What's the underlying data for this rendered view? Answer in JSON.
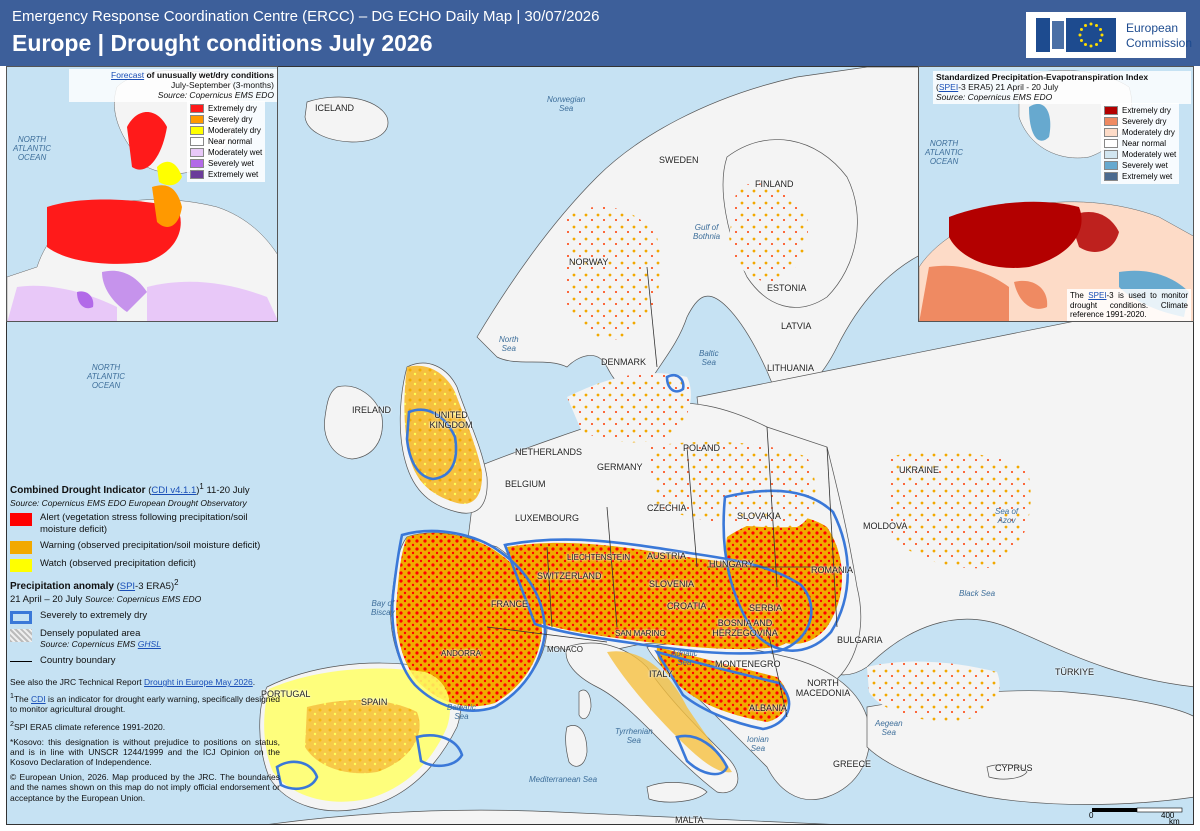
{
  "header": {
    "subtitle": "Emergency Response Coordination Centre (ERCC) – DG ECHO Daily Map | 30/07/2026",
    "title": "Europe | Drought conditions July 2026",
    "logo_line1": "European",
    "logo_line2": "Commission"
  },
  "left_inset": {
    "title_link": "Forecast",
    "title_rest": " of unusually wet/dry conditions",
    "period": "July-September (3-months)",
    "source": "Source: Copernicus EMS EDO",
    "ocean_label": "NORTH\nATLANTIC\nOCEAN",
    "legend": [
      {
        "label": "Extremely dry",
        "color": "#ff1a1a"
      },
      {
        "label": "Severely dry",
        "color": "#ff9900"
      },
      {
        "label": "Moderately dry",
        "color": "#ffff00"
      },
      {
        "label": "Near normal",
        "color": "#ffffff"
      },
      {
        "label": "Moderately wet",
        "color": "#e8c8f8"
      },
      {
        "label": "Severely wet",
        "color": "#b26ae8"
      },
      {
        "label": "Extremely wet",
        "color": "#6a3c9a"
      }
    ]
  },
  "right_inset": {
    "title": "Standardized Precipitation-Evapotranspiration Index",
    "subtitle_link": "SPEI",
    "subtitle_rest": "-3 ERA5) 21 April - 20 July",
    "source": "Source: Copernicus EMS EDO",
    "ocean_label": "NORTH\nATLANTIC\nOCEAN",
    "legend": [
      {
        "label": "Extremely dry",
        "color": "#b30000"
      },
      {
        "label": "Severely dry",
        "color": "#ef8a62"
      },
      {
        "label": "Moderately dry",
        "color": "#fddbc7"
      },
      {
        "label": "Near normal",
        "color": "#ffffff"
      },
      {
        "label": "Moderately wet",
        "color": "#d1e5f0"
      },
      {
        "label": "Severely wet",
        "color": "#67a9cf"
      },
      {
        "label": "Extremely wet",
        "color": "#4a6a8f"
      }
    ],
    "note_pre": "The ",
    "note_link": "SPEI",
    "note_post": "-3 is used to monitor drought conditions. Climate reference 1991-2020."
  },
  "legend": {
    "cdi_title": "Combined Drought Indicator",
    "cdi_link": "CDI v4.1.1",
    "cdi_sup": "1",
    "cdi_period": "11-20 July",
    "cdi_source": "Source: Copernicus EMS EDO European Drought Observatory",
    "items": [
      {
        "label": "Alert (vegetation stress following precipitation/soil moisture deficit)",
        "color": "#ff0000"
      },
      {
        "label": "Warning (observed precipitation/soil moisture deficit)",
        "color": "#f2a900"
      },
      {
        "label": "Watch (observed precipitation deficit)",
        "color": "#ffff00"
      }
    ],
    "spi_title": "Precipitation anomaly",
    "spi_link": "SPI",
    "spi_rest": "-3 ERA5)",
    "spi_sup": "2",
    "spi_period": "21 April – 20 July",
    "spi_source": "Source: Copernicus EMS EDO",
    "spi_item": "Severely to extremely dry",
    "pop_item": "Densely populated area",
    "pop_source_pre": "Source: Copernicus EMS ",
    "pop_source_link": "GHSL",
    "boundary_item": "Country boundary",
    "note_report_pre": "See also the JRC Technical Report ",
    "note_report_link": "Drought in Europe May 2026",
    "note_cdi_pre": "The ",
    "note_cdi_link": "CDI",
    "note_cdi_post": " is an indicator for drought early warning, specifically designed to monitor agricultural drought.",
    "note_spi": "SPI ERA5 climate reference 1991-2020.",
    "note_kosovo": "*Kosovo: this designation is without prejudice to positions on status, and is in line with UNSCR 1244/1999 and the ICJ Opinion on the Kosovo Declaration of Independence.",
    "note_copyright": "© European Union, 2026. Map produced by the JRC. The boundaries and the names shown on this map do not imply official endorsement or acceptance by the European Union."
  },
  "countries": [
    {
      "name": "ICELAND"
    },
    {
      "name": "NORWAY"
    },
    {
      "name": "SWEDEN"
    },
    {
      "name": "FINLAND"
    },
    {
      "name": "ESTONIA"
    },
    {
      "name": "LATVIA"
    },
    {
      "name": "LITHUANIA"
    },
    {
      "name": "DENMARK"
    },
    {
      "name": "IRELAND"
    },
    {
      "name": "UNITED KINGDOM"
    },
    {
      "name": "NETHERLANDS"
    },
    {
      "name": "BELGIUM"
    },
    {
      "name": "GERMANY"
    },
    {
      "name": "POLAND"
    },
    {
      "name": "UKRAINE"
    },
    {
      "name": "LUXEMBOURG"
    },
    {
      "name": "CZECHIA"
    },
    {
      "name": "SLOVAKIA"
    },
    {
      "name": "MOLDOVA"
    },
    {
      "name": "LIECHTENSTEIN"
    },
    {
      "name": "AUSTRIA"
    },
    {
      "name": "HUNGARY"
    },
    {
      "name": "ROMANIA"
    },
    {
      "name": "SWITZERLAND"
    },
    {
      "name": "SLOVENIA"
    },
    {
      "name": "FRANCE"
    },
    {
      "name": "CROATIA"
    },
    {
      "name": "SERBIA"
    },
    {
      "name": "BOSNIA AND HERZEGOVINA"
    },
    {
      "name": "SAN MARINO"
    },
    {
      "name": "MONACO"
    },
    {
      "name": "ANDORRA"
    },
    {
      "name": "BULGARIA"
    },
    {
      "name": "MONTENEGRO"
    },
    {
      "name": "ITALY"
    },
    {
      "name": "NORTH MACEDONIA"
    },
    {
      "name": "ALBANIA"
    },
    {
      "name": "PORTUGAL"
    },
    {
      "name": "SPAIN"
    },
    {
      "name": "GREECE"
    },
    {
      "name": "TÜRKIYE"
    },
    {
      "name": "CYPRUS"
    },
    {
      "name": "MALTA"
    }
  ],
  "seas": [
    {
      "name": "Norwegian\nSea"
    },
    {
      "name": "Gulf of\nBothnia"
    },
    {
      "name": "North\nSea"
    },
    {
      "name": "Baltic\nSea"
    },
    {
      "name": "NORTH\nATLANTIC\nOCEAN"
    },
    {
      "name": "Bay of\nBiscay"
    },
    {
      "name": "Sea of\nAzov"
    },
    {
      "name": "Black Sea"
    },
    {
      "name": "Adriatic\nSea"
    },
    {
      "name": "Balearic\nSea"
    },
    {
      "name": "Tyrrhenian\nSea"
    },
    {
      "name": "Ionian\nSea"
    },
    {
      "name": "Aegean\nSea"
    },
    {
      "name": "Mediterranean Sea"
    }
  ],
  "scalebar": {
    "zero": "0",
    "max": "400",
    "unit": "km"
  },
  "colors": {
    "header_bg": "#3d5f9a",
    "sea": "#c6e2f3",
    "land": "#f4f4f4",
    "alert": "#ff0000",
    "warning": "#f2a900",
    "watch": "#ffff00",
    "spi_outline": "#3a78d8"
  }
}
